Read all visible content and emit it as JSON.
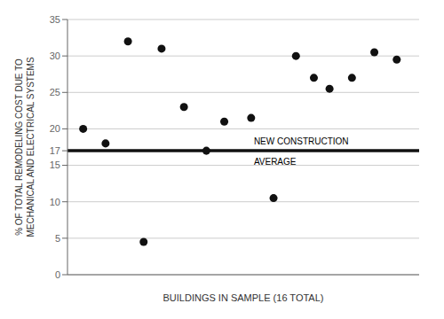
{
  "chart_data": {
    "type": "scatter",
    "x": [
      1,
      2,
      3,
      3.7,
      4.5,
      5.5,
      6.5,
      7.3,
      8.5,
      9.5,
      10.5,
      11.3,
      12,
      13,
      14,
      15
    ],
    "values": [
      20,
      18,
      32,
      4.5,
      31,
      23,
      17,
      21,
      21.5,
      10.5,
      30,
      27,
      25.5,
      27,
      30.5,
      29.5
    ],
    "color": "#111111",
    "xlabel": "BUILDINGS IN SAMPLE (16 TOTAL)",
    "ylabel": "% OF TOTAL REMODELING COST DUE TO\nMECHANICAL AND ELECTRICAL SYSTEMS",
    "xlim": [
      0.3,
      16
    ],
    "ylim": [
      0,
      35
    ],
    "yticks": [
      0,
      5,
      10,
      15,
      17,
      20,
      25,
      30,
      35
    ],
    "grid": true,
    "tick_labels": "y",
    "reference_line": {
      "y": 17,
      "color": "#111111",
      "labels": [
        "NEW CONSTRUCTION",
        "AVERAGE"
      ]
    }
  }
}
